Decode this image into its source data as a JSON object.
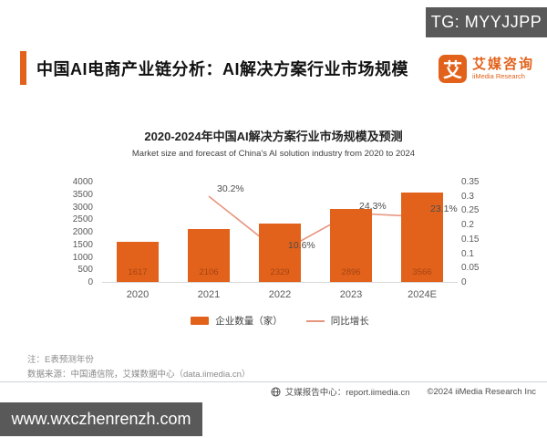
{
  "watermark_top": "TG: MYYJJPP",
  "watermark_bottom": "www.wxczhenrenzh.com",
  "header": {
    "title": "中国AI电商产业链分析：AI解决方案行业市场规模",
    "logo": {
      "glyph": "艾",
      "name_cn": "艾媒咨询",
      "name_en": "iiMedia Research"
    },
    "accent_color": "#e2621b"
  },
  "chart_data": {
    "type": "bar",
    "title": "2020-2024年中国AI解决方案行业市场规模及预测",
    "subtitle": "Market size and forecast of China's AI solution industry from 2020 to 2024",
    "categories": [
      "2020",
      "2021",
      "2022",
      "2023",
      "2024E"
    ],
    "series": [
      {
        "name": "企业数量（家）",
        "type": "bar",
        "axis": "left",
        "values": [
          1617,
          2106,
          2329,
          2896,
          3566
        ],
        "color": "#e2621b"
      },
      {
        "name": "同比增长",
        "type": "line",
        "axis": "right",
        "values": [
          null,
          0.302,
          0.106,
          0.243,
          0.231
        ],
        "labels": [
          "",
          "30.2%",
          "10.6%",
          "24.3%",
          "23.1%"
        ],
        "color": "#e6957e"
      }
    ],
    "left_axis": {
      "min": 0,
      "max": 4000,
      "step": 500,
      "ticks": [
        "4000",
        "3500",
        "3000",
        "2500",
        "2000",
        "1500",
        "1000",
        "500",
        "0"
      ]
    },
    "right_axis": {
      "min": 0,
      "max": 0.35,
      "step": 0.05,
      "ticks": [
        "0.35",
        "0.3",
        "0.25",
        "0.2",
        "0.15",
        "0.1",
        "0.05",
        "0"
      ]
    },
    "legend": [
      {
        "label": "企业数量（家）",
        "swatch": "bar"
      },
      {
        "label": "同比增长",
        "swatch": "line"
      }
    ],
    "legend_position": "bottom",
    "grid": false,
    "bar_value_color": "#a64413"
  },
  "notes": {
    "line1": "注：E表预测年份",
    "line2": "数据来源：中国通信院，艾媒数据中心（data.iimedia.cn）"
  },
  "footer": {
    "report_center": "艾媒报告中心：report.iimedia.cn",
    "copyright": "©2024  iiMedia Research  Inc"
  }
}
